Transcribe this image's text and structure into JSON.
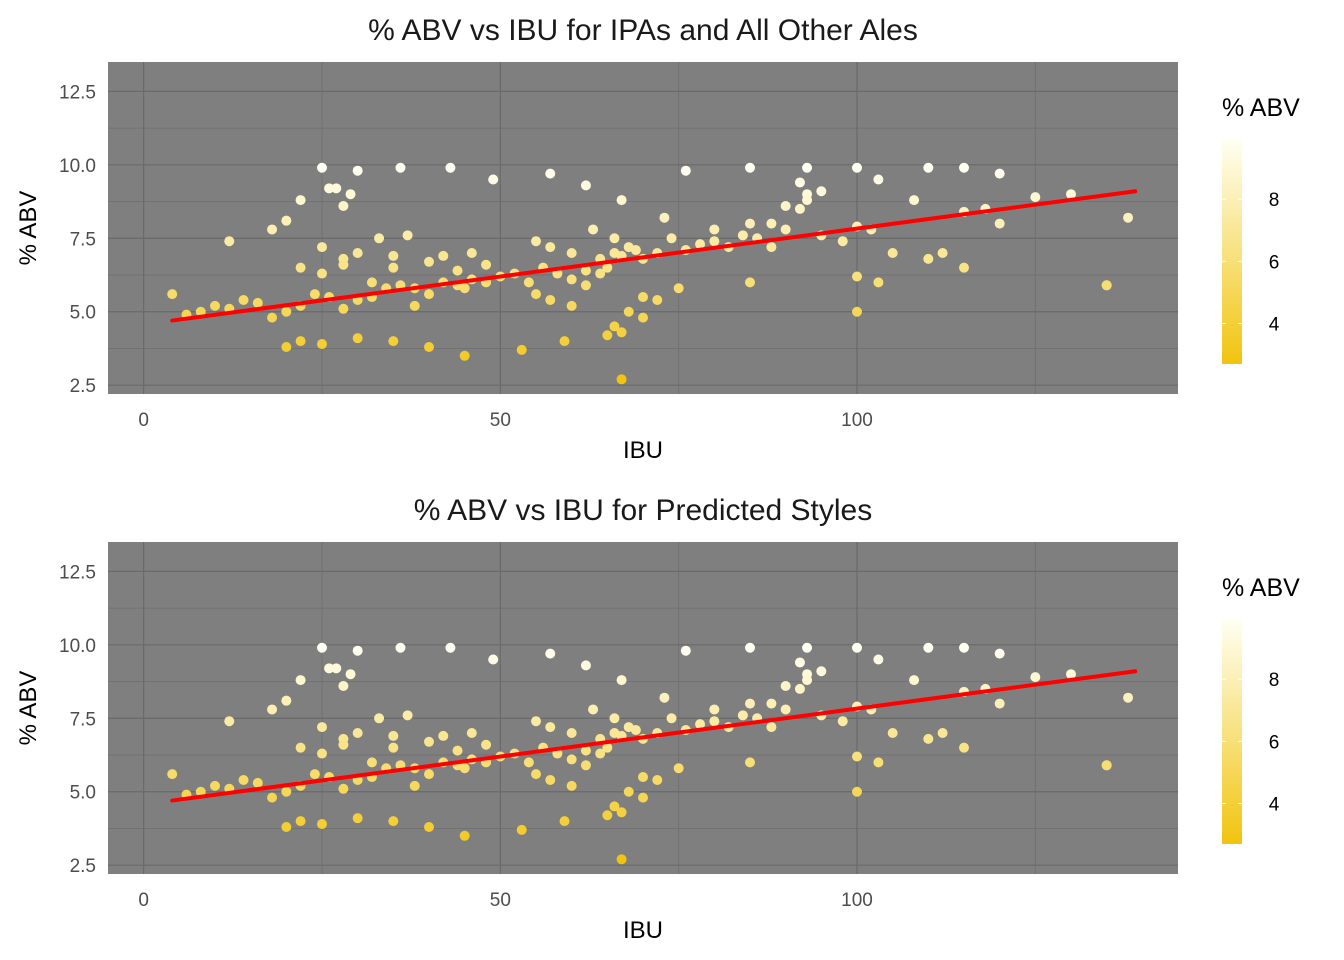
{
  "chart_data": [
    {
      "type": "scatter",
      "title": "% ABV vs IBU for IPAs and All Other Ales",
      "xlabel": "IBU",
      "ylabel": "% ABV",
      "xlim": [
        -5,
        145
      ],
      "ylim": [
        2.2,
        13.5
      ],
      "x_ticks": [
        "0",
        "50",
        "100"
      ],
      "y_ticks": [
        "2.5",
        "5.0",
        "7.5",
        "10.0",
        "12.5"
      ],
      "x_tick_values": [
        0,
        50,
        100
      ],
      "y_tick_values": [
        2.5,
        5.0,
        7.5,
        10.0,
        12.5
      ],
      "grid": true,
      "panel_background": "#7f7f7f",
      "legend": {
        "title": "% ABV",
        "position": "right",
        "ticks": [
          "4",
          "6",
          "8"
        ],
        "tick_values": [
          4,
          6,
          8
        ],
        "range": [
          2.7,
          9.9
        ],
        "low_color": "#f1c40f",
        "high_color": "#fffff2"
      },
      "trend_line": {
        "color": "#ff0000",
        "x": [
          4,
          139
        ],
        "y": [
          4.7,
          9.1
        ]
      },
      "series": [
        {
          "x": [
            4,
            6,
            8,
            10,
            12,
            14,
            16,
            18,
            20,
            22,
            24,
            26,
            28,
            30,
            32,
            34,
            36,
            38,
            40,
            42,
            44,
            45,
            46,
            48,
            50,
            52,
            54,
            56,
            58,
            60,
            62,
            64,
            65,
            66,
            67,
            68,
            70,
            72,
            74,
            76,
            78,
            80,
            82,
            84,
            85,
            86,
            88,
            90,
            92,
            93,
            95,
            98,
            100,
            100,
            102,
            105,
            108,
            110,
            112,
            115,
            118,
            120,
            125,
            130,
            135,
            138,
            12,
            18,
            20,
            22,
            25,
            26,
            27,
            28,
            29,
            30,
            36,
            43,
            49,
            57,
            62,
            67,
            76,
            85,
            93,
            100,
            103,
            110,
            115,
            120,
            20,
            22,
            25,
            30,
            35,
            40,
            45,
            53,
            59,
            65,
            70,
            75,
            85,
            100,
            103,
            115,
            135,
            22,
            25,
            28,
            30,
            33,
            35,
            37,
            40,
            42,
            44,
            46,
            48,
            55,
            57,
            60,
            63,
            66,
            67,
            69,
            73,
            80,
            88,
            90,
            92,
            93,
            95,
            25,
            28,
            32,
            35,
            38,
            55,
            57,
            60,
            62,
            64,
            66,
            67,
            68,
            70,
            72
          ],
          "y": [
            5.6,
            4.9,
            5.0,
            5.2,
            5.1,
            5.4,
            5.3,
            4.8,
            5.0,
            5.2,
            5.6,
            5.5,
            5.1,
            5.4,
            5.5,
            5.8,
            5.9,
            5.2,
            5.6,
            6.0,
            5.9,
            5.8,
            6.1,
            6.0,
            6.2,
            6.3,
            6.0,
            6.5,
            6.3,
            6.1,
            6.4,
            6.8,
            6.5,
            7.0,
            6.9,
            7.2,
            6.8,
            7.0,
            7.5,
            7.1,
            7.3,
            7.4,
            7.2,
            7.6,
            8.0,
            7.5,
            7.2,
            7.8,
            8.5,
            9.0,
            7.6,
            7.4,
            7.9,
            6.2,
            7.8,
            7.0,
            8.8,
            6.8,
            7.0,
            8.4,
            8.5,
            8.0,
            8.9,
            9.0,
            5.9,
            8.2,
            7.4,
            7.8,
            8.1,
            8.8,
            9.9,
            9.2,
            9.2,
            8.6,
            9.0,
            9.8,
            9.9,
            9.9,
            9.5,
            9.7,
            9.3,
            8.8,
            9.8,
            9.9,
            9.9,
            9.9,
            9.5,
            9.9,
            9.9,
            9.7,
            3.8,
            4.0,
            3.9,
            4.1,
            4.0,
            3.8,
            3.5,
            3.7,
            4.0,
            4.2,
            5.5,
            5.8,
            6.0,
            5.0,
            6.0,
            6.5,
            5.9,
            6.5,
            7.2,
            6.8,
            7.0,
            7.5,
            6.9,
            7.6,
            6.7,
            6.9,
            6.4,
            7.0,
            6.6,
            7.4,
            7.2,
            7.0,
            7.8,
            7.5,
            2.7,
            7.1,
            8.2,
            7.8,
            8.0,
            8.6,
            9.4,
            8.8,
            9.1,
            6.3,
            6.6,
            6.0,
            6.5,
            5.8,
            5.6,
            5.4,
            5.2,
            5.9,
            6.3,
            4.5,
            4.3,
            5.0,
            4.8,
            5.4
          ]
        }
      ]
    },
    {
      "type": "scatter",
      "title": "% ABV vs IBU for Predicted Styles",
      "xlabel": "IBU",
      "ylabel": "% ABV",
      "xlim": [
        -5,
        145
      ],
      "ylim": [
        2.2,
        13.5
      ],
      "x_ticks": [
        "0",
        "50",
        "100"
      ],
      "y_ticks": [
        "2.5",
        "5.0",
        "7.5",
        "10.0",
        "12.5"
      ],
      "x_tick_values": [
        0,
        50,
        100
      ],
      "y_tick_values": [
        2.5,
        5.0,
        7.5,
        10.0,
        12.5
      ],
      "grid": true,
      "panel_background": "#7f7f7f",
      "legend": {
        "title": "% ABV",
        "position": "right",
        "ticks": [
          "4",
          "6",
          "8"
        ],
        "tick_values": [
          4,
          6,
          8
        ],
        "range": [
          2.7,
          9.9
        ],
        "low_color": "#f1c40f",
        "high_color": "#fffff2"
      },
      "trend_line": {
        "color": "#ff0000",
        "x": [
          4,
          139
        ],
        "y": [
          4.7,
          9.1
        ]
      },
      "series": [
        {
          "x": [
            4,
            6,
            8,
            10,
            12,
            14,
            16,
            18,
            20,
            22,
            24,
            26,
            28,
            30,
            32,
            34,
            36,
            38,
            40,
            42,
            44,
            45,
            46,
            48,
            50,
            52,
            54,
            56,
            58,
            60,
            62,
            64,
            65,
            66,
            67,
            68,
            70,
            72,
            74,
            76,
            78,
            80,
            82,
            84,
            85,
            86,
            88,
            90,
            92,
            93,
            95,
            98,
            100,
            100,
            102,
            105,
            108,
            110,
            112,
            115,
            118,
            120,
            125,
            130,
            135,
            138,
            12,
            18,
            20,
            22,
            25,
            26,
            27,
            28,
            29,
            30,
            36,
            43,
            49,
            57,
            62,
            67,
            76,
            85,
            93,
            100,
            103,
            110,
            115,
            120,
            20,
            22,
            25,
            30,
            35,
            40,
            45,
            53,
            59,
            65,
            70,
            75,
            85,
            100,
            103,
            115,
            135,
            22,
            25,
            28,
            30,
            33,
            35,
            37,
            40,
            42,
            44,
            46,
            48,
            55,
            57,
            60,
            63,
            66,
            67,
            69,
            73,
            80,
            88,
            90,
            92,
            93,
            95,
            25,
            28,
            32,
            35,
            38,
            55,
            57,
            60,
            62,
            64,
            66,
            67,
            68,
            70,
            72
          ],
          "y": [
            5.6,
            4.9,
            5.0,
            5.2,
            5.1,
            5.4,
            5.3,
            4.8,
            5.0,
            5.2,
            5.6,
            5.5,
            5.1,
            5.4,
            5.5,
            5.8,
            5.9,
            5.2,
            5.6,
            6.0,
            5.9,
            5.8,
            6.1,
            6.0,
            6.2,
            6.3,
            6.0,
            6.5,
            6.3,
            6.1,
            6.4,
            6.8,
            6.5,
            7.0,
            6.9,
            7.2,
            6.8,
            7.0,
            7.5,
            7.1,
            7.3,
            7.4,
            7.2,
            7.6,
            8.0,
            7.5,
            7.2,
            7.8,
            8.5,
            9.0,
            7.6,
            7.4,
            7.9,
            6.2,
            7.8,
            7.0,
            8.8,
            6.8,
            7.0,
            8.4,
            8.5,
            8.0,
            8.9,
            9.0,
            5.9,
            8.2,
            7.4,
            7.8,
            8.1,
            8.8,
            9.9,
            9.2,
            9.2,
            8.6,
            9.0,
            9.8,
            9.9,
            9.9,
            9.5,
            9.7,
            9.3,
            8.8,
            9.8,
            9.9,
            9.9,
            9.9,
            9.5,
            9.9,
            9.9,
            9.7,
            3.8,
            4.0,
            3.9,
            4.1,
            4.0,
            3.8,
            3.5,
            3.7,
            4.0,
            4.2,
            5.5,
            5.8,
            6.0,
            5.0,
            6.0,
            6.5,
            5.9,
            6.5,
            7.2,
            6.8,
            7.0,
            7.5,
            6.9,
            7.6,
            6.7,
            6.9,
            6.4,
            7.0,
            6.6,
            7.4,
            7.2,
            7.0,
            7.8,
            7.5,
            2.7,
            7.1,
            8.2,
            7.8,
            8.0,
            8.6,
            9.4,
            8.8,
            9.1,
            6.3,
            6.6,
            6.0,
            6.5,
            5.8,
            5.6,
            5.4,
            5.2,
            5.9,
            6.3,
            4.5,
            4.3,
            5.0,
            4.8,
            5.4
          ]
        }
      ]
    }
  ]
}
